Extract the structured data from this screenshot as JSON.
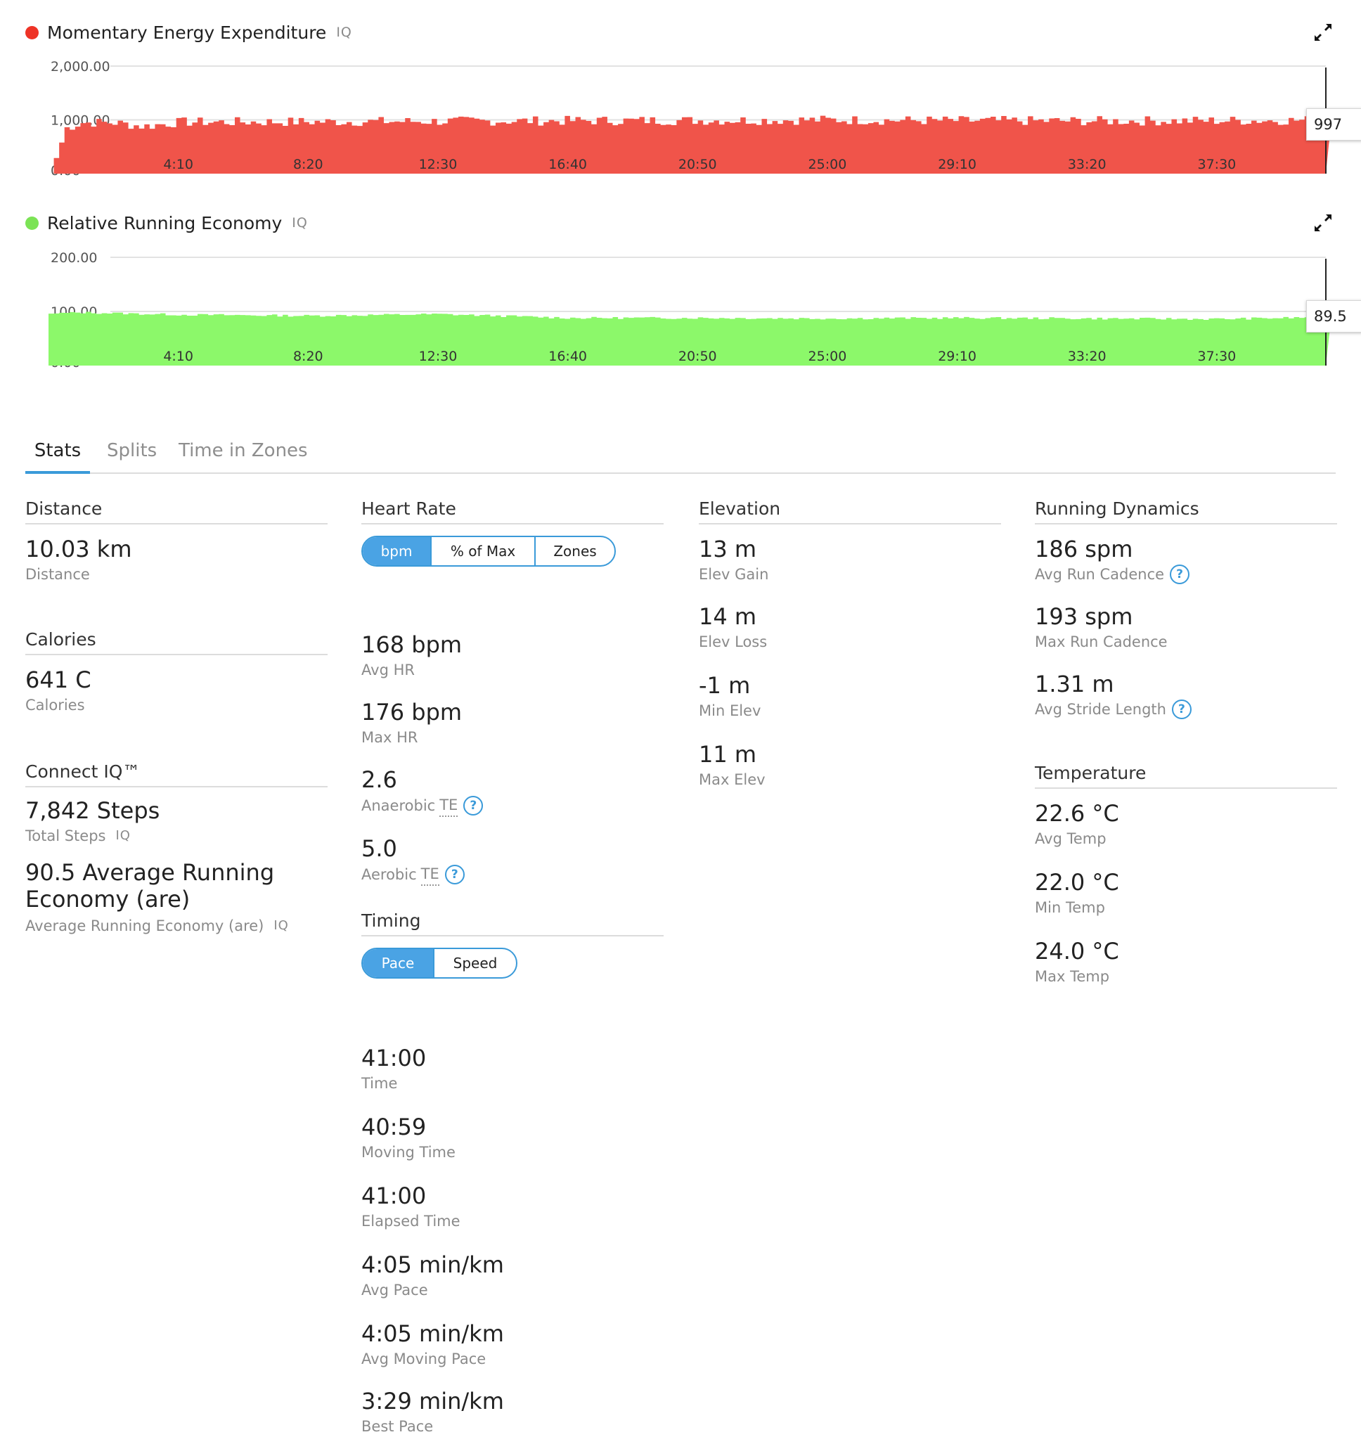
{
  "charts": [
    {
      "title": "Momentary Energy Expenditure",
      "iq": "IQ",
      "color": "#f0544a",
      "dot_color": "#ee3326",
      "yticks": [
        "2,000.00",
        "1,000.00",
        "0.00"
      ],
      "xticks": [
        "4:10",
        "8:20",
        "12:30",
        "16:40",
        "20:50",
        "25:00",
        "29:10",
        "33:20",
        "37:30"
      ],
      "cursor_value": "997"
    },
    {
      "title": "Relative Running Economy",
      "iq": "IQ",
      "color": "#8cf86a",
      "dot_color": "#7be355",
      "yticks": [
        "200.00",
        "100.00",
        "0.00"
      ],
      "xticks": [
        "4:10",
        "8:20",
        "12:30",
        "16:40",
        "20:50",
        "25:00",
        "29:10",
        "33:20",
        "37:30"
      ],
      "cursor_value": "89.5"
    }
  ],
  "chart_data": [
    {
      "type": "area",
      "title": "Momentary Energy Expenditure",
      "x_unit": "time (m:ss)",
      "ylim": [
        0,
        2000
      ],
      "x": [
        "0:00",
        "0:30",
        "1:00",
        "2:00",
        "3:00",
        "4:10",
        "8:20",
        "12:30",
        "16:40",
        "20:50",
        "25:00",
        "29:10",
        "33:20",
        "37:30",
        "41:00"
      ],
      "values": [
        0,
        850,
        950,
        950,
        880,
        960,
        965,
        975,
        985,
        990,
        1000,
        985,
        980,
        985,
        997
      ],
      "grid": true
    },
    {
      "type": "area",
      "title": "Relative Running Economy",
      "x_unit": "time (m:ss)",
      "ylim": [
        0,
        200
      ],
      "x": [
        "0:00",
        "1:00",
        "4:10",
        "8:20",
        "12:30",
        "16:40",
        "20:50",
        "25:00",
        "29:10",
        "33:20",
        "37:30",
        "41:00"
      ],
      "values": [
        96,
        98,
        94,
        92,
        95,
        88,
        88,
        87,
        88,
        87,
        86,
        89.5
      ],
      "grid": true
    }
  ],
  "tabs": [
    "Stats",
    "Splits",
    "Time in Zones"
  ],
  "distance": {
    "title": "Distance",
    "value": "10.03 km",
    "label": "Distance"
  },
  "calories": {
    "title": "Calories",
    "value": "641 C",
    "label": "Calories"
  },
  "connect_iq": {
    "title": "Connect IQ™",
    "steps_value": "7,842 Steps",
    "steps_label": "Total Steps",
    "iq": "IQ",
    "economy_value": "90.5 Average Running Economy (are)",
    "economy_label": "Average Running Economy (are)"
  },
  "heart_rate": {
    "title": "Heart Rate",
    "toggle": [
      "bpm",
      "% of Max",
      "Zones"
    ],
    "stats": [
      {
        "value": "168 bpm",
        "label": "Avg HR"
      },
      {
        "value": "176 bpm",
        "label": "Max HR"
      }
    ],
    "anaerobic_value": "2.6",
    "anaerobic_label": "Anaerobic",
    "aerobic_value": "5.0",
    "aerobic_label": "Aerobic",
    "te": "TE",
    "help": "?"
  },
  "timing": {
    "title": "Timing",
    "toggle": [
      "Pace",
      "Speed"
    ],
    "stats": [
      {
        "value": "41:00",
        "label": "Time"
      },
      {
        "value": "40:59",
        "label": "Moving Time"
      },
      {
        "value": "41:00",
        "label": "Elapsed Time"
      },
      {
        "value": "4:05 min/km",
        "label": "Avg Pace"
      },
      {
        "value": "4:05 min/km",
        "label": "Avg Moving Pace"
      },
      {
        "value": "3:29 min/km",
        "label": "Best Pace"
      }
    ]
  },
  "elevation": {
    "title": "Elevation",
    "stats": [
      {
        "value": "13 m",
        "label": "Elev Gain"
      },
      {
        "value": "14 m",
        "label": "Elev Loss"
      },
      {
        "value": "-1 m",
        "label": "Min Elev"
      },
      {
        "value": "11 m",
        "label": "Max Elev"
      }
    ]
  },
  "running_dynamics": {
    "title": "Running Dynamics",
    "stats": [
      {
        "value": "186 spm",
        "label": "Avg Run Cadence"
      },
      {
        "value": "193 spm",
        "label": "Max Run Cadence"
      },
      {
        "value": "1.31 m",
        "label": "Avg Stride Length"
      }
    ]
  },
  "temperature": {
    "title": "Temperature",
    "stats": [
      {
        "value": "22.6 °C",
        "label": "Avg Temp"
      },
      {
        "value": "22.0 °C",
        "label": "Min Temp"
      },
      {
        "value": "24.0 °C",
        "label": "Max Temp"
      }
    ]
  }
}
